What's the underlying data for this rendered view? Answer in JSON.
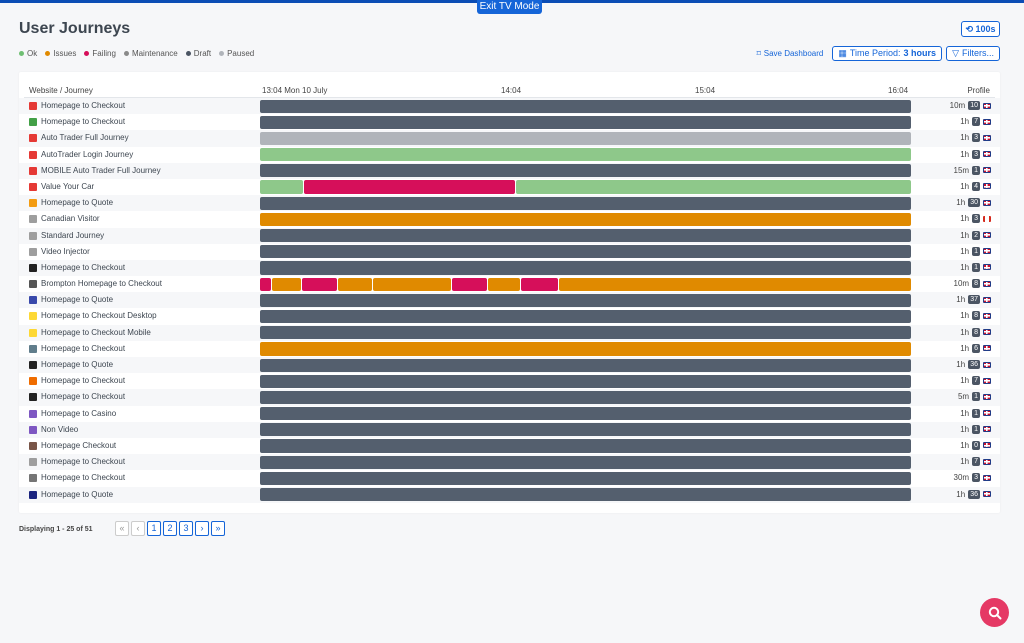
{
  "app": {
    "exit_tv_label": "Exit TV Mode",
    "title": "User Journeys",
    "refresh_label": "100s"
  },
  "legend": [
    {
      "label": "Ok",
      "color": "#6fbf73"
    },
    {
      "label": "Issues",
      "color": "#e08a00"
    },
    {
      "label": "Failing",
      "color": "#d60f5a"
    },
    {
      "label": "Maintenance",
      "color": "#8a8a8a"
    },
    {
      "label": "Draft",
      "color": "#4b5563"
    },
    {
      "label": "Paused",
      "color": "#b0b4ba"
    }
  ],
  "actions": {
    "save_label": "Save Dashboard",
    "time_period_prefix": "Time Period:",
    "time_period_value": "3 hours",
    "filters_label": "Filters..."
  },
  "table": {
    "col_site": "Website / Journey",
    "col_profile": "Profile",
    "ticks": [
      "13:04 Mon 10 July",
      "14:04",
      "15:04",
      "16:04"
    ]
  },
  "status_colors": {
    "draft": "#545f6e",
    "paused": "#b0b4ba",
    "ok": "#8ec88a",
    "failing": "#d60f5a",
    "issues": "#e08a00"
  },
  "rows": [
    {
      "name": "Homepage to Checkout",
      "icon": "store-red-icon",
      "icon_color": "#e53935",
      "interval": "10m",
      "count": "10",
      "flag": "uk",
      "segments": [
        {
          "s": "draft",
          "from": 0,
          "to": 1
        }
      ]
    },
    {
      "name": "Homepage to Checkout",
      "icon": "green-a-icon",
      "icon_color": "#43a047",
      "interval": "1h",
      "count": "7",
      "flag": "uk",
      "segments": [
        {
          "s": "draft",
          "from": 0,
          "to": 1
        }
      ]
    },
    {
      "name": "Auto Trader Full Journey",
      "icon": "autotrader-icon",
      "icon_color": "#e53935",
      "interval": "1h",
      "count": "3",
      "flag": "uk",
      "segments": [
        {
          "s": "paused",
          "from": 0,
          "to": 1
        }
      ]
    },
    {
      "name": "AutoTrader Login Journey",
      "icon": "autotrader-icon",
      "icon_color": "#e53935",
      "interval": "1h",
      "count": "3",
      "flag": "uk",
      "segments": [
        {
          "s": "ok",
          "from": 0,
          "to": 1
        }
      ]
    },
    {
      "name": "MOBILE Auto Trader Full Journey",
      "icon": "autotrader-icon",
      "icon_color": "#e53935",
      "interval": "15m",
      "count": "1",
      "flag": "uk",
      "segments": [
        {
          "s": "draft",
          "from": 0,
          "to": 1
        }
      ]
    },
    {
      "name": "Value Your Car",
      "icon": "autotrader-icon",
      "icon_color": "#e53935",
      "interval": "1h",
      "count": "4",
      "flag": "uk",
      "segments": [
        {
          "s": "ok",
          "from": 0,
          "to": 0.068
        },
        {
          "s": "failing",
          "from": 0.068,
          "to": 0.392
        },
        {
          "s": "ok",
          "from": 0.392,
          "to": 1
        }
      ]
    },
    {
      "name": "Homepage to Quote",
      "icon": "orange-circle-icon",
      "icon_color": "#f39c12",
      "interval": "1h",
      "count": "30",
      "flag": "uk",
      "segments": [
        {
          "s": "draft",
          "from": 0,
          "to": 1
        }
      ]
    },
    {
      "name": "Canadian Visitor",
      "icon": "pulse-icon",
      "icon_color": "#9e9e9e",
      "interval": "1h",
      "count": "3",
      "flag": "ca",
      "segments": [
        {
          "s": "issues",
          "from": 0,
          "to": 1
        }
      ]
    },
    {
      "name": "Standard Journey",
      "icon": "pulse-icon",
      "icon_color": "#9e9e9e",
      "interval": "1h",
      "count": "2",
      "flag": "uk",
      "segments": [
        {
          "s": "draft",
          "from": 0,
          "to": 1
        }
      ]
    },
    {
      "name": "Video Injector",
      "icon": "pulse-icon",
      "icon_color": "#9e9e9e",
      "interval": "1h",
      "count": "1",
      "flag": "uk",
      "segments": [
        {
          "s": "draft",
          "from": 0,
          "to": 1
        }
      ]
    },
    {
      "name": "Homepage to Checkout",
      "icon": "dark-logo-icon",
      "icon_color": "#222222",
      "interval": "1h",
      "count": "1",
      "flag": "uk",
      "segments": [
        {
          "s": "draft",
          "from": 0,
          "to": 1
        }
      ]
    },
    {
      "name": "Brompton Homepage to Checkout",
      "icon": "bike-icon",
      "icon_color": "#555555",
      "interval": "10m",
      "count": "8",
      "flag": "uk",
      "segments": [
        {
          "s": "failing",
          "from": 0,
          "to": 0.018
        },
        {
          "s": "issues",
          "from": 0.018,
          "to": 0.064
        },
        {
          "s": "failing",
          "from": 0.064,
          "to": 0.12
        },
        {
          "s": "issues",
          "from": 0.12,
          "to": 0.174
        },
        {
          "s": "issues",
          "from": 0.174,
          "to": 0.294
        },
        {
          "s": "failing",
          "from": 0.294,
          "to": 0.35
        },
        {
          "s": "issues",
          "from": 0.35,
          "to": 0.4
        },
        {
          "s": "failing",
          "from": 0.4,
          "to": 0.458
        },
        {
          "s": "issues",
          "from": 0.458,
          "to": 1
        }
      ]
    },
    {
      "name": "Homepage to Quote",
      "icon": "b-logo-icon",
      "icon_color": "#3949ab",
      "interval": "1h",
      "count": "37",
      "flag": "uk",
      "segments": [
        {
          "s": "draft",
          "from": 0,
          "to": 1
        }
      ]
    },
    {
      "name": "Homepage to Checkout Desktop",
      "icon": "yellow-circle-icon",
      "icon_color": "#fdd835",
      "interval": "1h",
      "count": "8",
      "flag": "uk",
      "segments": [
        {
          "s": "draft",
          "from": 0,
          "to": 1
        }
      ]
    },
    {
      "name": "Homepage to Checkout Mobile",
      "icon": "yellow-circle-icon",
      "icon_color": "#fdd835",
      "interval": "1h",
      "count": "8",
      "flag": "uk",
      "segments": [
        {
          "s": "draft",
          "from": 0,
          "to": 1
        }
      ]
    },
    {
      "name": "Homepage to Checkout",
      "icon": "car-icon",
      "icon_color": "#607d8b",
      "interval": "1h",
      "count": "6",
      "flag": "uk",
      "segments": [
        {
          "s": "issues",
          "from": 0,
          "to": 1
        }
      ]
    },
    {
      "name": "Homepage to Quote",
      "icon": "d-logo-icon",
      "icon_color": "#222222",
      "interval": "1h",
      "count": "36",
      "flag": "uk",
      "segments": [
        {
          "s": "draft",
          "from": 0,
          "to": 1
        }
      ]
    },
    {
      "name": "Homepage to Checkout",
      "icon": "ob-logo-icon",
      "icon_color": "#ef6c00",
      "interval": "1h",
      "count": "7",
      "flag": "uk",
      "segments": [
        {
          "s": "draft",
          "from": 0,
          "to": 1
        }
      ]
    },
    {
      "name": "Homepage to Checkout",
      "icon": "f-logo-icon",
      "icon_color": "#222222",
      "interval": "5m",
      "count": "1",
      "flag": "uk",
      "segments": [
        {
          "s": "draft",
          "from": 0,
          "to": 1
        }
      ]
    },
    {
      "name": "Homepage to Casino",
      "icon": "globe-icon",
      "icon_color": "#7e57c2",
      "interval": "1h",
      "count": "1",
      "flag": "uk",
      "segments": [
        {
          "s": "draft",
          "from": 0,
          "to": 1
        }
      ]
    },
    {
      "name": "Non Video",
      "icon": "globe-icon",
      "icon_color": "#7e57c2",
      "interval": "1h",
      "count": "1",
      "flag": "uk",
      "segments": [
        {
          "s": "draft",
          "from": 0,
          "to": 1
        }
      ]
    },
    {
      "name": "Homepage Checkout",
      "icon": "person-icon",
      "icon_color": "#795548",
      "interval": "1h",
      "count": "0",
      "flag": "uk",
      "segments": [
        {
          "s": "draft",
          "from": 0,
          "to": 1
        }
      ]
    },
    {
      "name": "Homepage to Checkout",
      "icon": "info-icon",
      "icon_color": "#9e9e9e",
      "interval": "1h",
      "count": "7",
      "flag": "uk",
      "segments": [
        {
          "s": "draft",
          "from": 0,
          "to": 1
        }
      ]
    },
    {
      "name": "Homepage to Checkout",
      "icon": "target-icon",
      "icon_color": "#757575",
      "interval": "30m",
      "count": "3",
      "flag": "uk",
      "segments": [
        {
          "s": "draft",
          "from": 0,
          "to": 1
        }
      ]
    },
    {
      "name": "Homepage to Quote",
      "icon": "blue-logo-icon",
      "icon_color": "#1a237e",
      "interval": "1h",
      "count": "36",
      "flag": "uk",
      "segments": [
        {
          "s": "draft",
          "from": 0,
          "to": 1
        }
      ]
    }
  ],
  "footer": {
    "displaying": "Displaying 1 - 25 of 51",
    "pages": [
      "«",
      "‹",
      "1",
      "2",
      "3",
      "›",
      "»"
    ]
  }
}
